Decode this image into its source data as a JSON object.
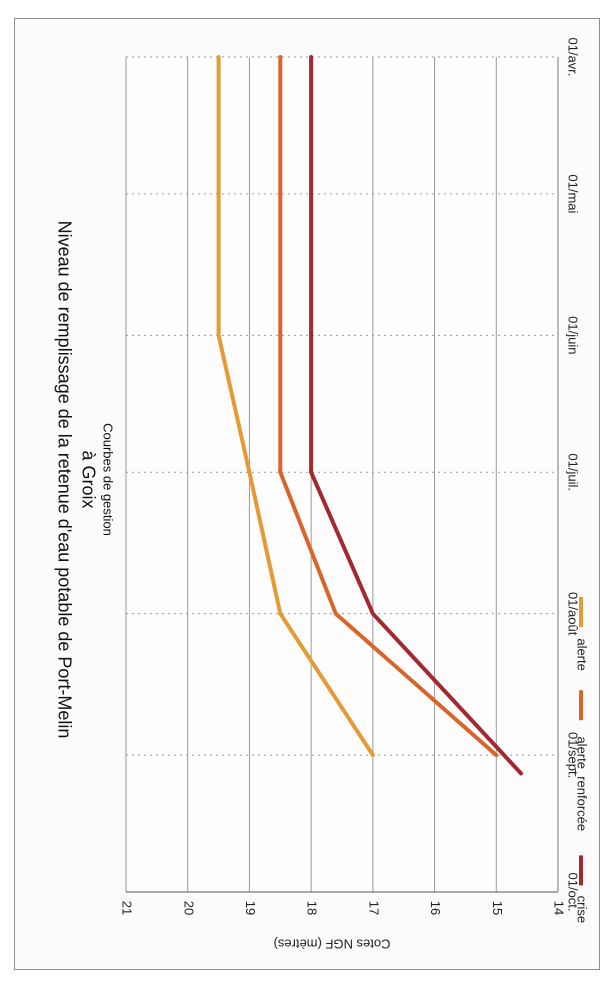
{
  "chart_data": {
    "type": "line",
    "title": "Niveau de remplissage de la retenue d'eau potable de Port-Melin",
    "title_line2": "à Groix",
    "subtitle": "Courbes de gestion",
    "ylabel": "Cotes NGF (mètres)",
    "xlabel": "",
    "categories": [
      "01/avr.",
      "01/mai",
      "01/juin",
      "01/juil.",
      "01/août",
      "01/sept.",
      "01/oct."
    ],
    "x": [
      0,
      30,
      61,
      91,
      122,
      153,
      183
    ],
    "ylim": [
      14,
      21
    ],
    "yticks": [
      "14",
      "15",
      "16",
      "17",
      "18",
      "19",
      "20",
      "21"
    ],
    "legend_position": "bottom",
    "grid": true,
    "orientation": "rotated-90-clockwise",
    "series": [
      {
        "name": "alerte",
        "color": "#e59a38",
        "points": [
          [
            0,
            19.5
          ],
          [
            61,
            19.5
          ],
          [
            91,
            19.0
          ],
          [
            122,
            18.5
          ],
          [
            153,
            17.0
          ]
        ]
      },
      {
        "name": "alerte_renforcée",
        "color": "#d9652a",
        "points": [
          [
            0,
            18.5
          ],
          [
            91,
            18.5
          ],
          [
            122,
            17.6
          ],
          [
            153,
            15.0
          ]
        ]
      },
      {
        "name": "crise",
        "color": "#a32830",
        "points": [
          [
            0,
            18.0
          ],
          [
            91,
            18.0
          ],
          [
            122,
            17.0
          ],
          [
            157,
            14.6
          ]
        ]
      }
    ]
  }
}
